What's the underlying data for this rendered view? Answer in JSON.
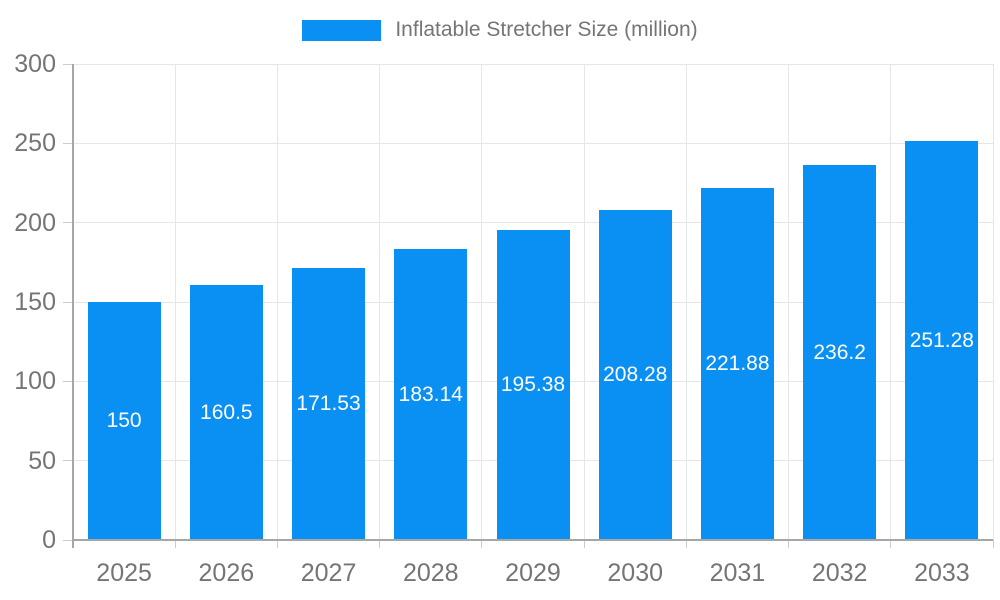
{
  "chart_data": {
    "type": "bar",
    "title": "Inflatable Stretcher Size (million)",
    "legend": [
      {
        "label": "Inflatable Stretcher Size (million)",
        "color": "#0a90f2"
      }
    ],
    "legend_position": "top-center",
    "categories": [
      "2025",
      "2026",
      "2027",
      "2028",
      "2029",
      "2030",
      "2031",
      "2032",
      "2033"
    ],
    "series": [
      {
        "name": "Inflatable Stretcher Size (million)",
        "values": [
          150,
          160.5,
          171.53,
          183.14,
          195.38,
          208.28,
          221.88,
          236.2,
          251.28
        ]
      }
    ],
    "value_labels": [
      "150",
      "160.5",
      "171.53",
      "183.14",
      "195.38",
      "208.28",
      "221.88",
      "236.2",
      "251.28"
    ],
    "xlabel": "",
    "ylabel": "",
    "ylim": [
      0,
      300
    ],
    "yticks": [
      0,
      50,
      100,
      150,
      200,
      250,
      300
    ],
    "grid": true,
    "colors": {
      "bar": "#0a90f2",
      "value_label": "#ffffff",
      "axis_text": "#757575",
      "axis_line": "#a6a6a6",
      "gridline": "#e6e6e6",
      "tick": "#cccccc",
      "background": "#ffffff"
    }
  }
}
